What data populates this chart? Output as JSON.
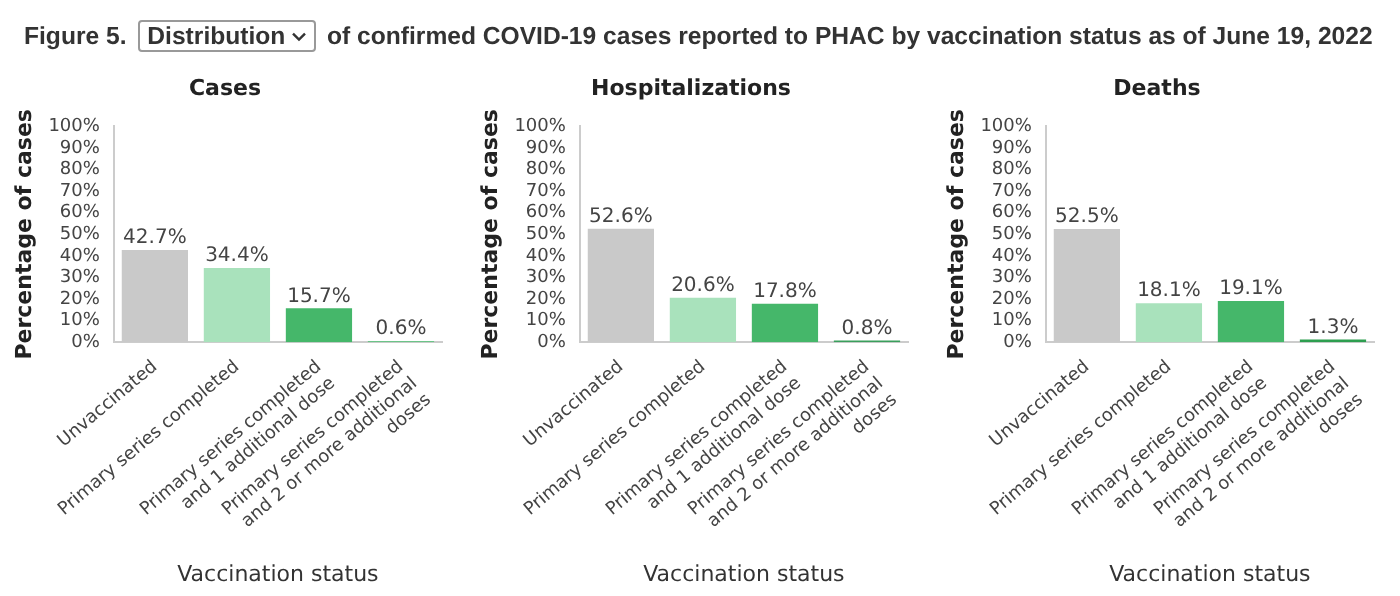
{
  "chart_data": [
    {
      "type": "bar",
      "title": "Cases",
      "xlabel": "Vaccination status",
      "ylabel": "Percentage of cases",
      "annotations": [
        "Figure 5.",
        "Distribution",
        "of confirmed COVID-19 cases reported to PHAC by vaccination status as of June 19, 2022"
      ],
      "categories": [
        "Unvaccinated",
        "Primary series completed",
        "Primary series completed and 1 additional dose",
        "Primary series completed and 2 or more additional doses"
      ],
      "values": [
        42.7,
        34.4,
        15.7,
        0.6
      ],
      "value_labels": [
        "42.7%",
        "34.4%",
        "15.7%",
        "0.6%"
      ],
      "colors": [
        "#c9c9c9",
        "#a9e2bc",
        "#45b76a",
        "#6cc488"
      ],
      "ylim": [
        0,
        100
      ],
      "yticks": [
        {
          "value": 0,
          "label": "0%"
        },
        {
          "value": 10,
          "label": "10%"
        },
        {
          "value": 20,
          "label": "20%"
        },
        {
          "value": 30,
          "label": "30%"
        },
        {
          "value": 40,
          "label": "40%"
        },
        {
          "value": 50,
          "label": "50%"
        },
        {
          "value": 60,
          "label": "60%"
        },
        {
          "value": 70,
          "label": "70%"
        },
        {
          "value": 80,
          "label": "80%"
        },
        {
          "value": 90,
          "label": "90%"
        },
        {
          "value": 100,
          "label": "100%"
        }
      ],
      "grid": false,
      "legend": false
    },
    {
      "type": "bar",
      "title": "Hospitalizations",
      "xlabel": "Vaccination status",
      "ylabel": "Percentage of cases",
      "categories": [
        "Unvaccinated",
        "Primary series completed",
        "Primary series completed and 1 additional dose",
        "Primary series completed and 2 or more additional doses"
      ],
      "values": [
        52.6,
        20.6,
        17.8,
        0.8
      ],
      "value_labels": [
        "52.6%",
        "20.6%",
        "17.8%",
        "0.8%"
      ],
      "colors": [
        "#c9c9c9",
        "#a9e2bc",
        "#45b76a",
        "#3a9f5c"
      ],
      "ylim": [
        0,
        100
      ],
      "yticks": [
        {
          "value": 0,
          "label": "0%"
        },
        {
          "value": 10,
          "label": "10%"
        },
        {
          "value": 20,
          "label": "20%"
        },
        {
          "value": 30,
          "label": "30%"
        },
        {
          "value": 40,
          "label": "40%"
        },
        {
          "value": 50,
          "label": "50%"
        },
        {
          "value": 60,
          "label": "60%"
        },
        {
          "value": 70,
          "label": "70%"
        },
        {
          "value": 80,
          "label": "80%"
        },
        {
          "value": 90,
          "label": "90%"
        },
        {
          "value": 100,
          "label": "100%"
        }
      ],
      "grid": false,
      "legend": false
    },
    {
      "type": "bar",
      "title": "Deaths",
      "xlabel": "Vaccination status",
      "ylabel": "Percentage of cases",
      "categories": [
        "Unvaccinated",
        "Primary series completed",
        "Primary series completed and 1 additional dose",
        "Primary series completed and 2 or more additional doses"
      ],
      "values": [
        52.5,
        18.1,
        19.1,
        1.3
      ],
      "value_labels": [
        "52.5%",
        "18.1%",
        "19.1%",
        "1.3%"
      ],
      "colors": [
        "#c9c9c9",
        "#a9e2bc",
        "#45b76a",
        "#2d9e4f"
      ],
      "ylim": [
        0,
        100
      ],
      "yticks": [
        {
          "value": 0,
          "label": "0%"
        },
        {
          "value": 10,
          "label": "10%"
        },
        {
          "value": 20,
          "label": "20%"
        },
        {
          "value": 30,
          "label": "30%"
        },
        {
          "value": 40,
          "label": "40%"
        },
        {
          "value": 50,
          "label": "50%"
        },
        {
          "value": 60,
          "label": "60%"
        },
        {
          "value": 70,
          "label": "70%"
        },
        {
          "value": 80,
          "label": "80%"
        },
        {
          "value": 90,
          "label": "90%"
        },
        {
          "value": 100,
          "label": "100%"
        }
      ],
      "grid": false,
      "legend": false
    }
  ]
}
